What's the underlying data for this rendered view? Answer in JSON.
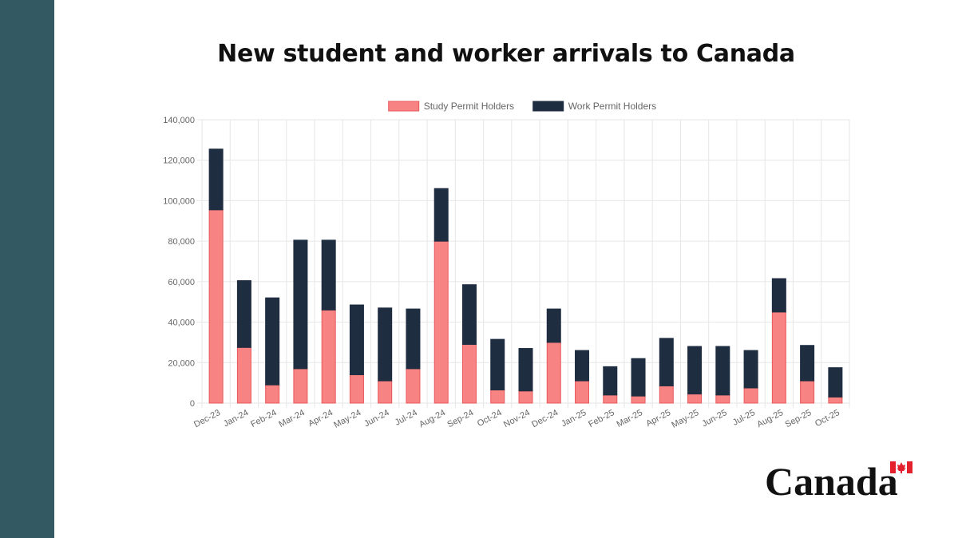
{
  "sidebar_color": "#335a63",
  "title": "New student and worker arrivals to Canada",
  "wordmark": {
    "text": "Canada",
    "flag_color": "#e4202c"
  },
  "chart_data": {
    "type": "bar",
    "stacked": true,
    "title": "New student and worker arrivals to Canada",
    "xlabel": "",
    "ylabel": "",
    "ylim": [
      0,
      140000
    ],
    "yticks": [
      0,
      20000,
      40000,
      60000,
      80000,
      100000,
      120000,
      140000
    ],
    "ytick_labels": [
      "0",
      "20,000",
      "40,000",
      "60,000",
      "80,000",
      "100,000",
      "120,000",
      "140,000"
    ],
    "grid": true,
    "legend": "top-center",
    "categories": [
      "Dec-23",
      "Jan-24",
      "Feb-24",
      "Mar-24",
      "Apr-24",
      "May-24",
      "Jun-24",
      "Jul-24",
      "Aug-24",
      "Sep-24",
      "Oct-24",
      "Nov-24",
      "Dec-24",
      "Jan-25",
      "Feb-25",
      "Mar-25",
      "Apr-25",
      "May-25",
      "Jun-25",
      "Jul-25",
      "Aug-25",
      "Sep-25",
      "Oct-25"
    ],
    "series": [
      {
        "name": "Study Permit Holders",
        "color": "#f88383",
        "border": "#e8595b",
        "values": [
          95500,
          27500,
          9000,
          17000,
          46000,
          14000,
          11000,
          17000,
          80000,
          29000,
          6500,
          6000,
          30000,
          11000,
          4000,
          3500,
          8500,
          4500,
          4000,
          7500,
          45000,
          11000,
          3000
        ]
      },
      {
        "name": "Work Permit Holders",
        "color": "#1f2d41",
        "border": "#1f2d41",
        "values": [
          30000,
          33000,
          43000,
          63500,
          34500,
          34500,
          36000,
          29500,
          26000,
          29500,
          25000,
          21000,
          16500,
          15000,
          14000,
          18500,
          23500,
          23500,
          24000,
          18500,
          16500,
          17500,
          14500
        ]
      }
    ]
  }
}
